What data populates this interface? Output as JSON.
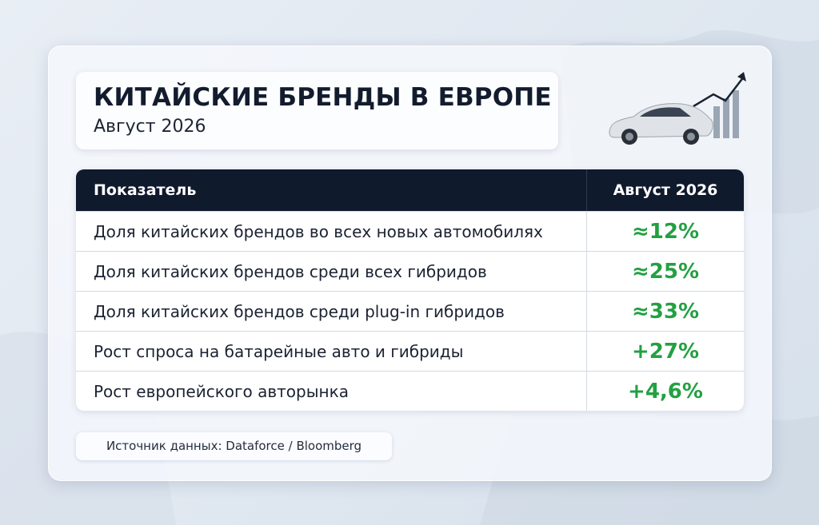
{
  "header": {
    "title": "КИТАЙСКИЕ БРЕНДЫ В ЕВРОПЕ",
    "subtitle": "Август 2026"
  },
  "table": {
    "columns": [
      "Показатель",
      "Август 2026"
    ],
    "rows": [
      [
        "Доля китайских брендов во всех новых автомобилях",
        "≈12%"
      ],
      [
        "Доля китайских брендов среди всех гибридов",
        "≈25%"
      ],
      [
        "Доля китайских брендов среди plug-in гибридов",
        "≈33%"
      ],
      [
        "Рост спроса на батарейные авто и гибриды",
        "+27%"
      ],
      [
        "Рост европейского авторынка",
        "+4,6%"
      ]
    ]
  },
  "source": "Источник данных: Dataforce / Bloomberg"
}
